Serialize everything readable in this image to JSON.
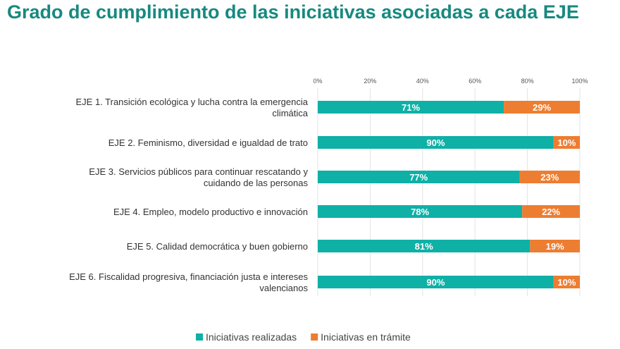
{
  "chart_data": {
    "type": "bar",
    "orientation": "horizontal",
    "stacked": true,
    "title": "Grado de cumplimiento de las iniciativas asociadas a cada EJE",
    "categories": [
      [
        "EJE 1. Transición ecológica y lucha contra la emergencia",
        "climática"
      ],
      [
        "EJE 2. Feminismo, diversidad e igualdad de trato"
      ],
      [
        "EJE 3. Servicios públicos para continuar rescatando y",
        "cuidando de las personas"
      ],
      [
        "EJE 4. Empleo, modelo productivo e innovación"
      ],
      [
        "EJE 5. Calidad democrática y buen gobierno"
      ],
      [
        "EJE 6. Fiscalidad progresiva, financiación justa e intereses",
        "valencianos"
      ]
    ],
    "series": [
      {
        "name": "Iniciativas realizadas",
        "values": [
          71,
          90,
          77,
          78,
          81,
          90
        ],
        "color": "#0fb0a6"
      },
      {
        "name": "Iniciativas en trámite",
        "values": [
          29,
          10,
          23,
          22,
          19,
          10
        ],
        "color": "#ed7d31"
      }
    ],
    "xlim": [
      0,
      100
    ],
    "xticks": [
      "0%",
      "20%",
      "40%",
      "60%",
      "80%",
      "100%"
    ],
    "grid": true,
    "axis_position": "top",
    "legend_placement": "bottom"
  }
}
